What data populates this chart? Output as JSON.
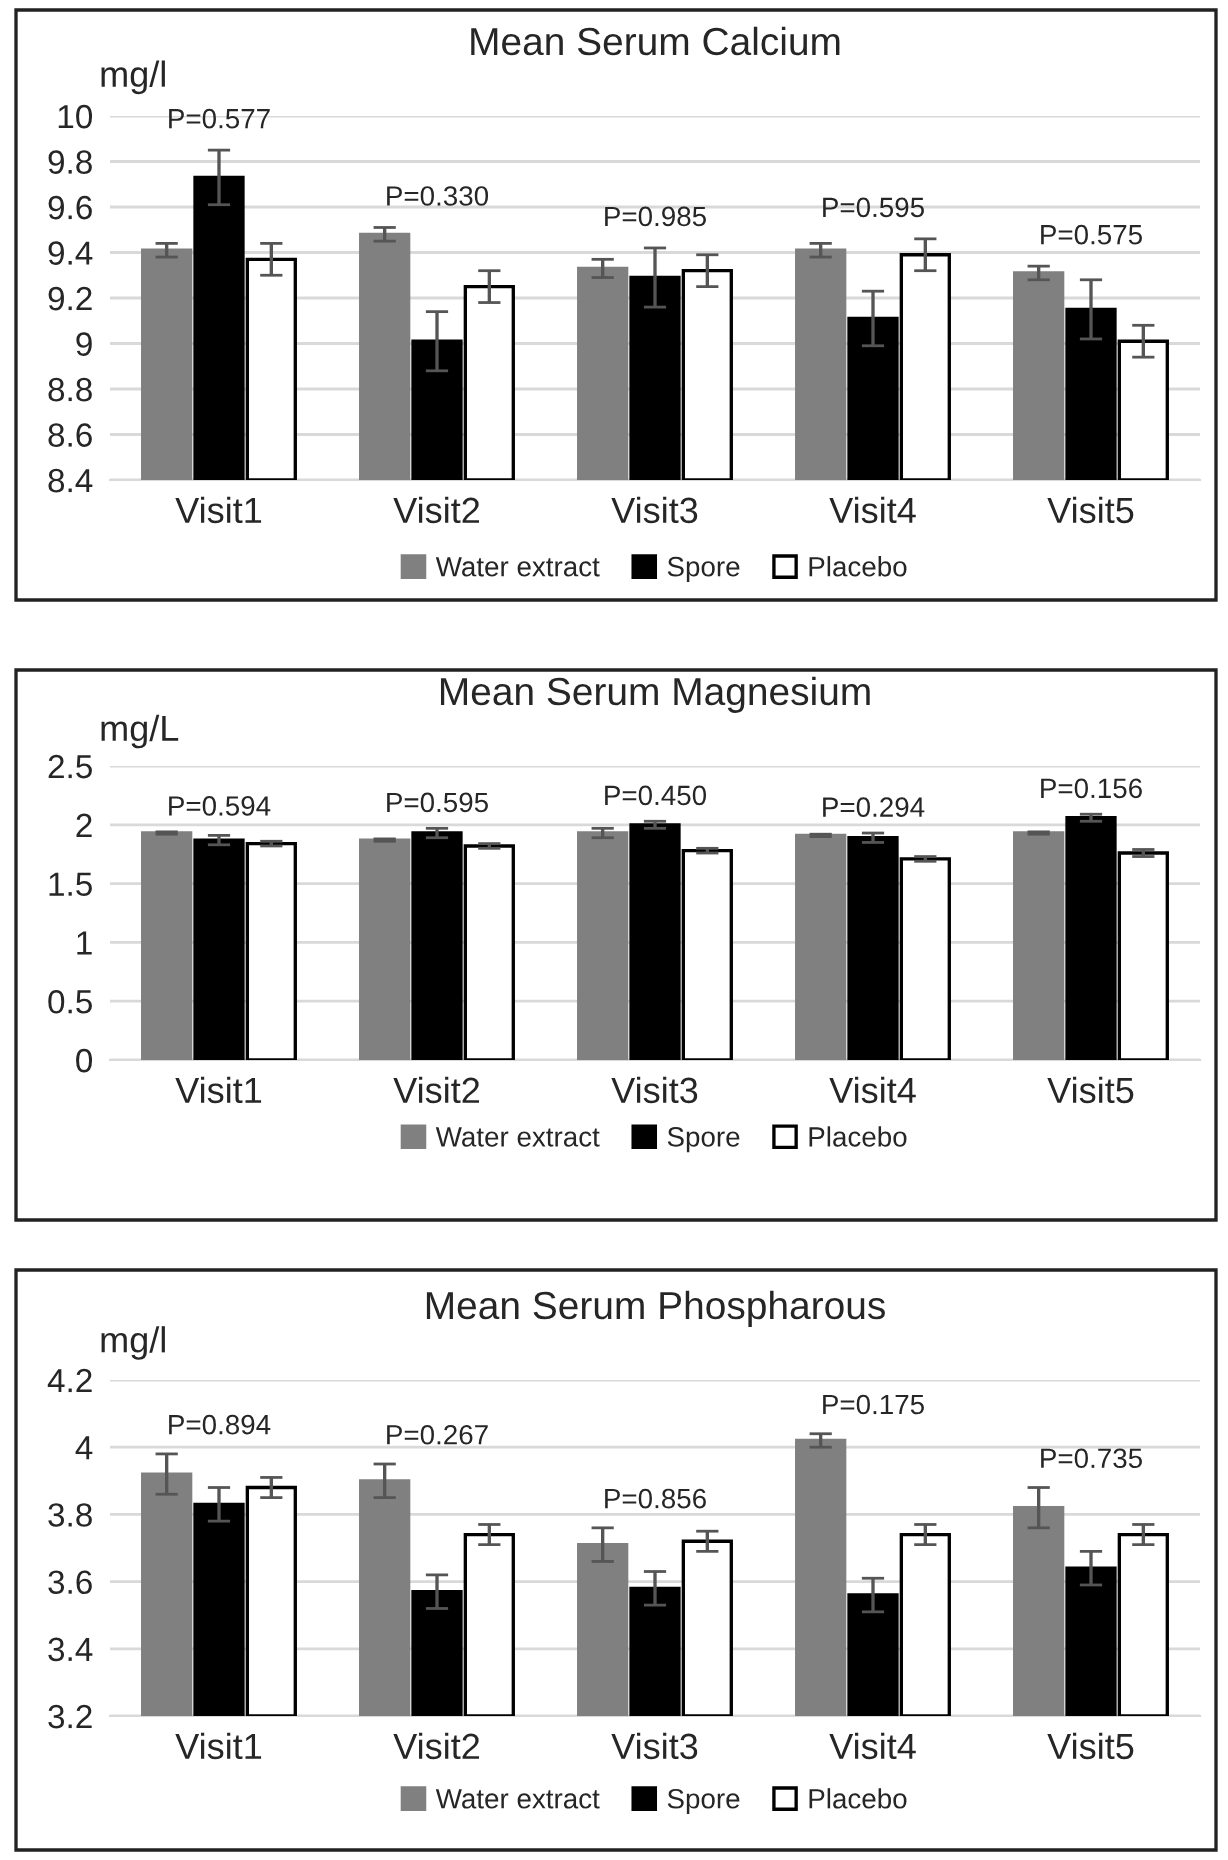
{
  "chart_data": [
    {
      "type": "bar",
      "title": "Mean Serum Calcium",
      "ylabel": "mg/l",
      "categories": [
        "Visit1",
        "Visit2",
        "Visit3",
        "Visit4",
        "Visit5"
      ],
      "series": [
        {
          "name": "Water extract",
          "color": "#808080",
          "values": [
            9.41,
            9.48,
            9.33,
            9.41,
            9.31
          ],
          "errors": [
            0.03,
            0.03,
            0.04,
            0.03,
            0.03
          ]
        },
        {
          "name": "Spore",
          "color": "#000000",
          "values": [
            9.73,
            9.01,
            9.29,
            9.11,
            9.15
          ],
          "errors": [
            0.12,
            0.13,
            0.13,
            0.12,
            0.13
          ]
        },
        {
          "name": "Placebo",
          "color": "#ffffff",
          "values": [
            9.37,
            9.25,
            9.32,
            9.39,
            9.01
          ],
          "errors": [
            0.07,
            0.07,
            0.07,
            0.07,
            0.07
          ]
        }
      ],
      "ylim": [
        8.4,
        10
      ],
      "yticks": [
        8.4,
        8.6,
        8.8,
        9,
        9.2,
        9.4,
        9.6,
        9.8,
        10
      ],
      "grid": "y",
      "legend": "bottom",
      "annotations": [
        "P=0.577",
        "P=0.330",
        "P=0.985",
        "P=0.595",
        "P=0.575"
      ]
    },
    {
      "type": "bar",
      "title": "Mean Serum Magnesium",
      "ylabel": "mg/L",
      "categories": [
        "Visit1",
        "Visit2",
        "Visit3",
        "Visit4",
        "Visit5"
      ],
      "series": [
        {
          "name": "Water extract",
          "color": "#808080",
          "values": [
            1.93,
            1.87,
            1.93,
            1.91,
            1.93
          ],
          "errors": [
            0.01,
            0.01,
            0.04,
            0.01,
            0.01
          ]
        },
        {
          "name": "Spore",
          "color": "#000000",
          "values": [
            1.87,
            1.93,
            2.0,
            1.89,
            2.06
          ],
          "errors": [
            0.04,
            0.04,
            0.03,
            0.04,
            0.03
          ]
        },
        {
          "name": "Placebo",
          "color": "#ffffff",
          "values": [
            1.84,
            1.82,
            1.78,
            1.71,
            1.76
          ],
          "errors": [
            0.02,
            0.02,
            0.02,
            0.02,
            0.03
          ]
        }
      ],
      "ylim": [
        0,
        2.5
      ],
      "yticks": [
        0,
        0.5,
        1,
        1.5,
        2,
        2.5
      ],
      "grid": "y",
      "legend": "bottom",
      "annotations": [
        "P=0.594",
        "P=0.595",
        "P=0.450",
        "P=0.294",
        "P=0.156"
      ]
    },
    {
      "type": "bar",
      "title": "Mean Serum Phospharous",
      "ylabel": "mg/l",
      "categories": [
        "Visit1",
        "Visit2",
        "Visit3",
        "Visit4",
        "Visit5"
      ],
      "series": [
        {
          "name": "Water extract",
          "color": "#808080",
          "values": [
            3.92,
            3.9,
            3.71,
            4.02,
            3.82
          ],
          "errors": [
            0.06,
            0.05,
            0.05,
            0.02,
            0.06
          ]
        },
        {
          "name": "Spore",
          "color": "#000000",
          "values": [
            3.83,
            3.57,
            3.58,
            3.56,
            3.64
          ],
          "errors": [
            0.05,
            0.05,
            0.05,
            0.05,
            0.05
          ]
        },
        {
          "name": "Placebo",
          "color": "#ffffff",
          "values": [
            3.88,
            3.74,
            3.72,
            3.74,
            3.74
          ],
          "errors": [
            0.03,
            0.03,
            0.03,
            0.03,
            0.03
          ]
        }
      ],
      "ylim": [
        3.2,
        4.2
      ],
      "yticks": [
        3.2,
        3.4,
        3.6,
        3.8,
        4,
        4.2
      ],
      "grid": "y",
      "legend": "bottom",
      "annotations": [
        "P=0.894",
        "P=0.267",
        "P=0.856",
        "P=0.175",
        "P=0.735"
      ]
    }
  ]
}
